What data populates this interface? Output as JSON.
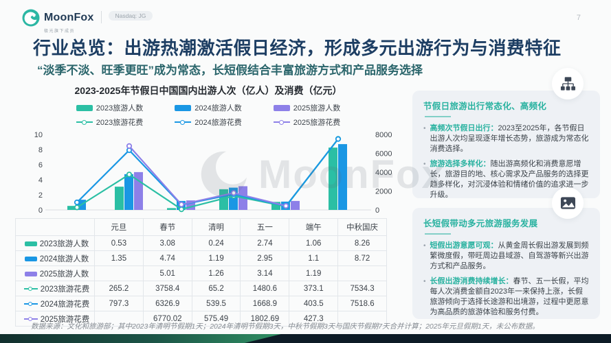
{
  "page": {
    "number": "7",
    "watermark": "MoonFox"
  },
  "header": {
    "brand": "MoonFox",
    "tagline": "极光旗下成员",
    "badge": "Nasdaq: JG"
  },
  "title": "行业总览：出游热潮激活假日经济，形成多元出游行为与消费特征",
  "subtitle": "“淡季不淡、旺季更旺”成为常态，长短假结合丰富旅游方式和产品服务选择",
  "chart_data": {
    "type": "combo bar+line",
    "title": "2023-2025年节假日中国国内出游人次（亿人）及消费（亿元）",
    "categories": [
      "元旦",
      "春节",
      "清明",
      "五一",
      "端午",
      "中秋国庆"
    ],
    "left_axis": {
      "min": 0,
      "max": 10,
      "ticks": [
        0,
        2,
        4,
        6,
        8,
        10
      ]
    },
    "right_axis": {
      "min": 0,
      "max": 8000,
      "ticks": [
        0,
        2000,
        4000,
        6000,
        8000
      ]
    },
    "bar_series": [
      {
        "name": "2023旅游人数",
        "color": "#2BBFA4",
        "values": [
          0.53,
          3.08,
          0.24,
          2.74,
          1.06,
          8.26
        ]
      },
      {
        "name": "2024旅游人数",
        "color": "#1A97E4",
        "values": [
          1.35,
          4.74,
          1.19,
          2.95,
          1.1,
          8.72
        ]
      },
      {
        "name": "2025旅游人数",
        "color": "#8D80E8",
        "values": [
          null,
          5.01,
          1.26,
          3.14,
          1.19,
          null
        ]
      }
    ],
    "line_series": [
      {
        "name": "2023旅游花费",
        "color": "#2BBFA4",
        "values": [
          265.2,
          3758.4,
          65.2,
          1480.6,
          373.1,
          7534.3
        ]
      },
      {
        "name": "2024旅游花费",
        "color": "#1A97E4",
        "values": [
          797.3,
          6326.9,
          539.5,
          1668.9,
          403.5,
          7518.6
        ]
      },
      {
        "name": "2025旅游花费",
        "color": "#8D80E8",
        "values": [
          null,
          6770.02,
          575.49,
          1802.69,
          427.3,
          null
        ]
      }
    ],
    "legend_position": "top",
    "grid": false
  },
  "table": {
    "header": [
      "",
      "元旦",
      "春节",
      "清明",
      "五一",
      "端午",
      "中秋国庆"
    ],
    "rows": [
      {
        "label": "2023旅游人数",
        "swatch": "bar",
        "color": "#2BBFA4",
        "values": [
          "0.53",
          "3.08",
          "0.24",
          "2.74",
          "1.06",
          "8.26"
        ]
      },
      {
        "label": "2024旅游人数",
        "swatch": "bar",
        "color": "#1A97E4",
        "values": [
          "1.35",
          "4.74",
          "1.19",
          "2.95",
          "1.1",
          "8.72"
        ]
      },
      {
        "label": "2025旅游人数",
        "swatch": "bar",
        "color": "#8D80E8",
        "values": [
          "",
          "5.01",
          "1.26",
          "3.14",
          "1.19",
          ""
        ]
      },
      {
        "label": "2023旅游花费",
        "swatch": "line",
        "color": "#2BBFA4",
        "values": [
          "265.2",
          "3758.4",
          "65.2",
          "1480.6",
          "373.1",
          "7534.3"
        ]
      },
      {
        "label": "2024旅游花费",
        "swatch": "line",
        "color": "#1A97E4",
        "values": [
          "797.3",
          "6326.9",
          "539.5",
          "1668.9",
          "403.5",
          "7518.6"
        ]
      },
      {
        "label": "2025旅游花费",
        "swatch": "line",
        "color": "#8D80E8",
        "values": [
          "",
          "6770.02",
          "575.49",
          "1802.69",
          "427.3",
          ""
        ]
      }
    ]
  },
  "panels": [
    {
      "icon": "sitemap-icon",
      "header": "节假日旅游出行常态化、高频化",
      "bullets": [
        {
          "lead": "高频次节假日出行：",
          "text": "2023至2025年，各节假日出游人次均呈现逐年增长态势，旅游成为常态化消费选择。"
        },
        {
          "lead": "旅游选择多样化：",
          "text": "随出游高频化和消费意愿增长，旅游目的地、核心需求及产品服务的选择更趋多样化，对沉浸体验和情绪价值的追求进一步升级。"
        }
      ]
    },
    {
      "icon": "image-icon",
      "header": "长短假带动多元旅游服务发展",
      "bullets": [
        {
          "lead": "短假出游意愿可观：",
          "text": "从黄金周长假出游发展到频繁微度假，带旺周边县域游、自驾游等新兴出游方式和产品服务。"
        },
        {
          "lead": "长假出游消费持续增长：",
          "text": "春节、五一长假，平均每人次消费金额自2023年一来保持上涨，长假旅游倾向于选择长途游和出境游，过程中更愿意为高品质的旅游体验和服务付费。"
        }
      ]
    }
  ],
  "footnote": "数据来源：文化和旅游部；其中2023年清明节假期1天；2024年清明节假期3天，中秋节假期3天与国庆节假期7天合并计算；2025年元旦假期1天，未公布数据。",
  "colors": {
    "accent_teal": "#29B2A0",
    "title_navy": "#1D3E63",
    "bar_2023": "#2BBFA4",
    "bar_2024": "#1A97E4",
    "bar_2025": "#8D80E8"
  }
}
